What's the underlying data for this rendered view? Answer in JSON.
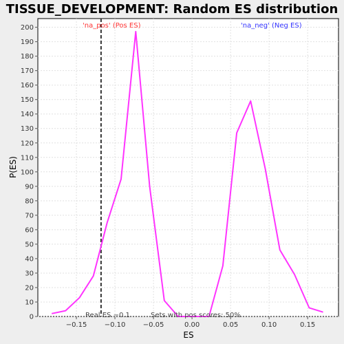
{
  "chart_data": {
    "type": "line",
    "title": "TISSUE_DEVELOPMENT: Random ES distribution",
    "xlabel": "ES",
    "ylabel": "P(ES)",
    "xlim": [
      -0.2,
      0.19
    ],
    "ylim": [
      0,
      206
    ],
    "xticks": [
      -0.15,
      -0.1,
      -0.05,
      0.0,
      0.05,
      0.1,
      0.15
    ],
    "xtick_labels": [
      "−0.15",
      "−0.10",
      "−0.05",
      "0.00",
      "0.05",
      "0.10",
      "0.15"
    ],
    "yticks": [
      0,
      10,
      20,
      30,
      40,
      50,
      60,
      70,
      80,
      90,
      100,
      110,
      120,
      130,
      140,
      150,
      160,
      170,
      180,
      190,
      200
    ],
    "grid": true,
    "series": [
      {
        "color": "#ff33ff",
        "x": [
          -0.182,
          -0.164,
          -0.146,
          -0.128,
          -0.11,
          -0.092,
          -0.073,
          -0.055,
          -0.036,
          -0.018,
          0.0,
          0.022,
          0.04,
          0.058,
          0.076,
          0.095,
          0.114,
          0.133,
          0.152,
          0.17
        ],
        "y": [
          2,
          4,
          13,
          28,
          65,
          95,
          197,
          90,
          11,
          0,
          0,
          0,
          35,
          127,
          149,
          102,
          46,
          29,
          6,
          3
        ]
      }
    ],
    "vline": {
      "x": -0.118,
      "color": "#333333",
      "style": "dashed"
    },
    "annotations": {
      "pos_label": "'na_pos' (Pos ES)",
      "pos_color": "#ff3333",
      "neg_label": "'na_neg' (Neg ES)",
      "neg_color": "#3333ff",
      "real_es": "Real ES −0.1",
      "sets_pos": "Sets with pos scores: 50%"
    }
  }
}
